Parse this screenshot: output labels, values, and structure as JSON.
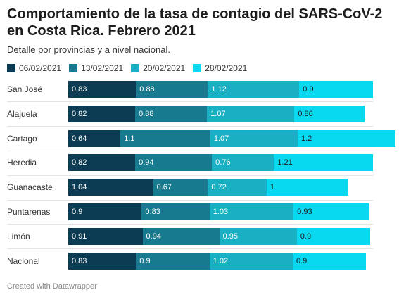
{
  "header": {
    "title": "Comportamiento de la tasa de contagio del SARS-CoV-2 en Costa Rica. Febrero 2021",
    "subtitle": "Detalle por provincias y a nivel nacional."
  },
  "footer": {
    "credit": "Created with Datawrapper"
  },
  "chart_data": {
    "type": "bar",
    "orientation": "horizontal",
    "stacked": true,
    "categories": [
      "San José",
      "Alajuela",
      "Cartago",
      "Heredia",
      "Guanacaste",
      "Puntarenas",
      "Limón",
      "Nacional"
    ],
    "series": [
      {
        "name": "06/02/2021",
        "color": "#0b3c53",
        "text_color": "#ffffff",
        "labels": [
          "0.83",
          "0.82",
          "0.64",
          "0.82",
          "1.04",
          "0.9",
          "0.91",
          "0.83"
        ],
        "values": [
          0.83,
          0.82,
          0.64,
          0.82,
          1.04,
          0.9,
          0.91,
          0.83
        ]
      },
      {
        "name": "13/02/2021",
        "color": "#177a8e",
        "text_color": "#ffffff",
        "labels": [
          "0.88",
          "0.88",
          "1.1",
          "0.94",
          "0.67",
          "0.83",
          "0.94",
          "0.9"
        ],
        "values": [
          0.88,
          0.88,
          1.1,
          0.94,
          0.67,
          0.83,
          0.94,
          0.9
        ]
      },
      {
        "name": "20/02/2021",
        "color": "#1ab0c3",
        "text_color": "#ffffff",
        "labels": [
          "1.12",
          "1.07",
          "1.07",
          "0.76",
          "0.72",
          "1.03",
          "0.95",
          "1.02"
        ],
        "values": [
          1.12,
          1.07,
          1.07,
          0.76,
          0.72,
          1.03,
          0.95,
          1.02
        ]
      },
      {
        "name": "28/02/2021",
        "color": "#09d8f1",
        "text_color": "#1d1d1d",
        "labels": [
          "0.9",
          "0.86",
          "1.2",
          "1.21",
          "1",
          "0.93",
          "0.9",
          "0.9"
        ],
        "values": [
          0.9,
          0.86,
          1.2,
          1.21,
          1,
          0.93,
          0.9,
          0.9
        ]
      }
    ],
    "legend": "top-left",
    "grid": false
  }
}
